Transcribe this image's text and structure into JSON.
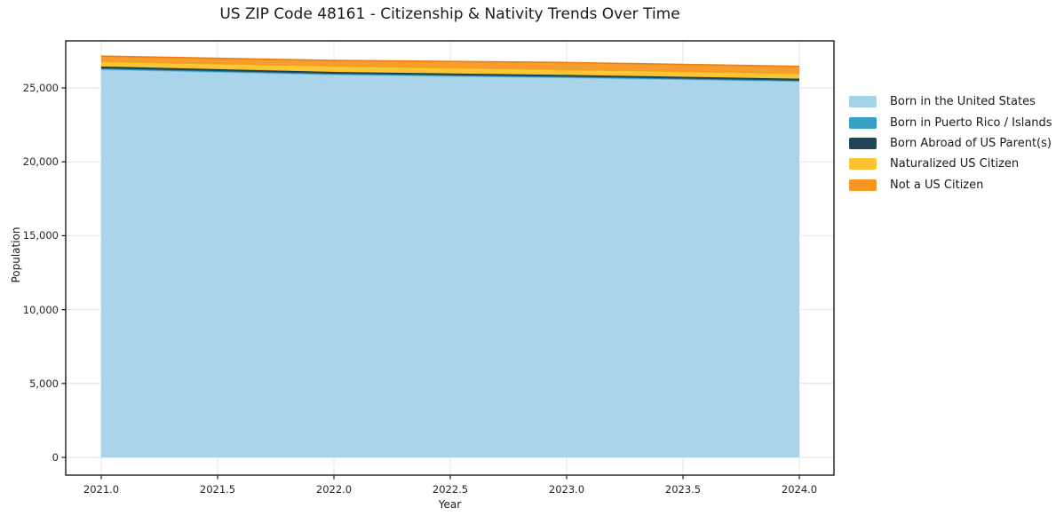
{
  "chart_data": {
    "type": "area",
    "stacked": true,
    "title": "US ZIP Code 48161 - Citizenship & Nativity Trends Over Time",
    "xlabel": "Year",
    "ylabel": "Population",
    "grid": true,
    "legend_position": "right",
    "background_color": "#ffffff",
    "grid_color": "#e4e4e4",
    "spine_color": "#1a1a1a",
    "x": [
      2021,
      2022,
      2023,
      2024
    ],
    "x_axis": {
      "values": [
        2021.0,
        2021.5,
        2022.0,
        2022.5,
        2023.0,
        2023.5,
        2024.0
      ],
      "labels": [
        "2021.0",
        "2021.5",
        "2022.0",
        "2022.5",
        "2023.0",
        "2023.5",
        "2024.0"
      ]
    },
    "y_axis": {
      "values": [
        0,
        5000,
        10000,
        15000,
        20000,
        25000
      ],
      "labels": [
        "0",
        "5,000",
        "10,000",
        "15,000",
        "20,000",
        "25,000"
      ]
    },
    "ylim": [
      0,
      28200
    ],
    "series": [
      {
        "name": "Born in the United States",
        "color": "#A4D2E8",
        "edge": "#7EC2DE",
        "values": [
          26250,
          25900,
          25700,
          25450
        ]
      },
      {
        "name": "Born in Puerto Rico / Islands",
        "color": "#35A0C2",
        "edge": "#2B8FAF",
        "values": [
          70,
          60,
          60,
          50
        ]
      },
      {
        "name": "Born Abroad of US Parent(s)",
        "color": "#1F4557",
        "edge": "#16323F",
        "values": [
          130,
          120,
          120,
          120
        ]
      },
      {
        "name": "Naturalized US Citizen",
        "color": "#FCC32E",
        "edge": "#F3B011",
        "values": [
          330,
          400,
          360,
          360
        ]
      },
      {
        "name": "Not a US Citizen",
        "color": "#F79722",
        "edge": "#EE7D12",
        "values": [
          370,
          380,
          480,
          480
        ]
      }
    ]
  }
}
